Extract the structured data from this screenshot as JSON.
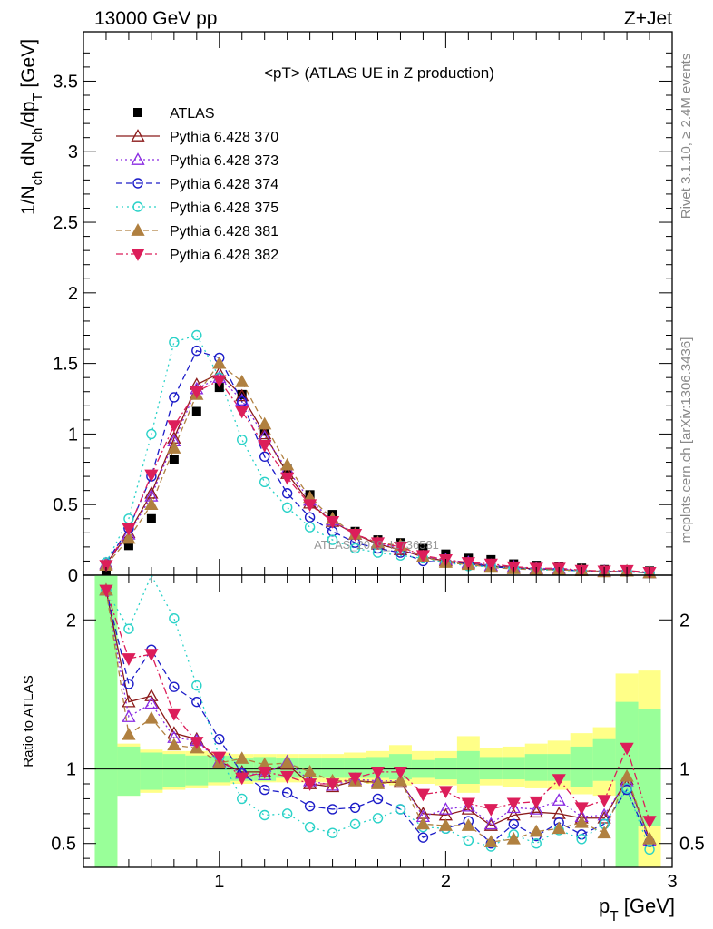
{
  "header": {
    "energy_label": "13000 GeV pp",
    "process_label": "Z+Jet",
    "plot_title": "<pT> (ATLAS UE in Z production)",
    "rivet_label": "Rivet 3.1.10, ≥ 2.4M events",
    "mcplots_label": "mcplots.cern.ch [arXiv:1306.3436]",
    "watermark": "ATLAS_2019_I1736531"
  },
  "axes": {
    "ylabel_main": "1/N_ch dN_ch/dp_T [GeV]",
    "ylabel_ratio": "Ratio to ATLAS",
    "xlabel": "p_T [GeV]"
  },
  "colors": {
    "ATLAS": "#000000",
    "370": "#8b1a1a",
    "373": "#8a2be2",
    "374": "#1c1cc8",
    "375": "#2ad2c8",
    "381": "#b08040",
    "382": "#dc1e5a",
    "band_inner": "#99ff99",
    "band_outer": "#ffff88"
  },
  "chart_data": [
    {
      "type": "scatter",
      "title": "<pT> (ATLAS UE in Z production)",
      "xlabel": "p_T [GeV]",
      "ylabel": "1/N_ch dN_ch/dp_T [GeV]",
      "xlim": [
        0.4,
        3.0
      ],
      "ylim": [
        0,
        3.85
      ],
      "x_ticks": [
        1,
        2,
        3
      ],
      "y_ticks": [
        0,
        0.5,
        1,
        1.5,
        2,
        2.5,
        3,
        3.5
      ],
      "legend_position": "top-left",
      "x": [
        0.5,
        0.6,
        0.7,
        0.8,
        0.9,
        1.0,
        1.1,
        1.2,
        1.3,
        1.4,
        1.5,
        1.6,
        1.7,
        1.8,
        1.9,
        2.0,
        2.1,
        2.2,
        2.3,
        2.4,
        2.5,
        2.6,
        2.7,
        2.8,
        2.9
      ],
      "series": [
        {
          "name": "ATLAS",
          "key": "ATLAS",
          "marker": "square",
          "values": [
            0.03,
            0.21,
            0.4,
            0.82,
            1.16,
            1.33,
            1.28,
            1.02,
            0.75,
            0.57,
            0.43,
            0.31,
            0.25,
            0.23,
            0.19,
            0.15,
            0.12,
            0.11,
            0.08,
            0.07,
            0.06,
            0.05,
            0.04,
            0.03,
            0.03
          ]
        },
        {
          "name": "Pythia 6.428 370",
          "key": "370",
          "marker": "triangle-open",
          "dash": "",
          "values": [
            0.08,
            0.3,
            0.58,
            0.97,
            1.35,
            1.43,
            1.27,
            1.0,
            0.72,
            0.51,
            0.38,
            0.29,
            0.22,
            0.18,
            0.13,
            0.1,
            0.085,
            0.065,
            0.055,
            0.045,
            0.04,
            0.033,
            0.027,
            0.028,
            0.016
          ]
        },
        {
          "name": "Pythia 6.428 373",
          "key": "373",
          "marker": "triangle-open",
          "dash": "2,3",
          "values": [
            0.08,
            0.29,
            0.56,
            0.95,
            1.32,
            1.4,
            1.24,
            0.98,
            0.75,
            0.53,
            0.39,
            0.29,
            0.23,
            0.19,
            0.13,
            0.11,
            0.09,
            0.07,
            0.06,
            0.048,
            0.047,
            0.034,
            0.027,
            0.028,
            0.016
          ]
        },
        {
          "name": "Pythia 6.428 374",
          "key": "374",
          "marker": "circle-open",
          "dash": "7,4",
          "values": [
            0.09,
            0.33,
            0.7,
            1.26,
            1.59,
            1.54,
            1.23,
            0.84,
            0.58,
            0.41,
            0.31,
            0.23,
            0.19,
            0.16,
            0.1,
            0.09,
            0.08,
            0.06,
            0.05,
            0.04,
            0.04,
            0.03,
            0.025,
            0.025,
            0.015
          ]
        },
        {
          "name": "Pythia 6.428 375",
          "key": "375",
          "marker": "circle-open",
          "dash": "2,4",
          "values": [
            0.09,
            0.4,
            1.0,
            1.65,
            1.7,
            1.4,
            0.96,
            0.66,
            0.48,
            0.34,
            0.25,
            0.19,
            0.16,
            0.14,
            0.12,
            0.09,
            0.065,
            0.06,
            0.05,
            0.04,
            0.035,
            0.03,
            0.025,
            0.025,
            0.013
          ]
        },
        {
          "name": "Pythia 6.428 381",
          "key": "381",
          "marker": "triangle-filled",
          "dash": "6,4",
          "values": [
            0.07,
            0.26,
            0.5,
            0.9,
            1.28,
            1.5,
            1.37,
            1.07,
            0.78,
            0.55,
            0.4,
            0.29,
            0.23,
            0.21,
            0.13,
            0.09,
            0.075,
            0.055,
            0.045,
            0.04,
            0.038,
            0.032,
            0.023,
            0.028,
            0.016
          ]
        },
        {
          "name": "Pythia 6.428 382",
          "key": "382",
          "marker": "triangledown-filled",
          "dash": "8,3,2,3",
          "values": [
            0.07,
            0.33,
            0.71,
            1.06,
            1.3,
            1.38,
            1.16,
            0.92,
            0.69,
            0.5,
            0.38,
            0.29,
            0.23,
            0.2,
            0.14,
            0.11,
            0.09,
            0.08,
            0.06,
            0.05,
            0.05,
            0.035,
            0.03,
            0.034,
            0.02
          ]
        }
      ]
    },
    {
      "type": "line",
      "ylabel": "Ratio to ATLAS",
      "xlabel": "p_T [GeV]",
      "xlim": [
        0.4,
        3.0
      ],
      "ylim": [
        0.34,
        2.3
      ],
      "y_ticks": [
        0.5,
        1,
        2
      ],
      "reference_line": 1,
      "x": [
        0.5,
        0.6,
        0.7,
        0.8,
        0.9,
        1.0,
        1.1,
        1.2,
        1.3,
        1.4,
        1.5,
        1.6,
        1.7,
        1.8,
        1.9,
        2.0,
        2.1,
        2.2,
        2.3,
        2.4,
        2.5,
        2.6,
        2.7,
        2.8,
        2.9
      ],
      "bands": {
        "x_edges": [
          0.45,
          0.55,
          0.65,
          0.75,
          0.85,
          0.95,
          1.05,
          1.15,
          1.25,
          1.35,
          1.45,
          1.55,
          1.65,
          1.75,
          1.85,
          1.95,
          2.05,
          2.15,
          2.25,
          2.35,
          2.45,
          2.55,
          2.65,
          2.75,
          2.85,
          2.95
        ],
        "inner": [
          [
            0.34,
            2.3
          ],
          [
            0.82,
            1.15
          ],
          [
            0.86,
            1.11
          ],
          [
            0.88,
            1.1
          ],
          [
            0.89,
            1.09
          ],
          [
            0.91,
            1.09
          ],
          [
            0.92,
            1.07
          ],
          [
            0.92,
            1.08
          ],
          [
            0.94,
            1.07
          ],
          [
            0.94,
            1.07
          ],
          [
            0.94,
            1.07
          ],
          [
            0.94,
            1.07
          ],
          [
            0.94,
            1.08
          ],
          [
            0.93,
            1.1
          ],
          [
            0.94,
            1.06
          ],
          [
            0.93,
            1.07
          ],
          [
            0.9,
            1.12
          ],
          [
            0.93,
            1.08
          ],
          [
            0.93,
            1.08
          ],
          [
            0.92,
            1.1
          ],
          [
            0.92,
            1.1
          ],
          [
            0.88,
            1.15
          ],
          [
            0.92,
            1.2
          ],
          [
            0.34,
            1.45
          ],
          [
            0.62,
            1.4
          ]
        ],
        "outer": [
          [
            0.34,
            2.3
          ],
          [
            0.82,
            1.17
          ],
          [
            0.84,
            1.13
          ],
          [
            0.86,
            1.12
          ],
          [
            0.87,
            1.12
          ],
          [
            0.89,
            1.11
          ],
          [
            0.9,
            1.1
          ],
          [
            0.91,
            1.1
          ],
          [
            0.91,
            1.1
          ],
          [
            0.91,
            1.1
          ],
          [
            0.91,
            1.1
          ],
          [
            0.91,
            1.11
          ],
          [
            0.9,
            1.12
          ],
          [
            0.89,
            1.16
          ],
          [
            0.9,
            1.12
          ],
          [
            0.89,
            1.12
          ],
          [
            0.84,
            1.22
          ],
          [
            0.89,
            1.14
          ],
          [
            0.88,
            1.15
          ],
          [
            0.87,
            1.17
          ],
          [
            0.86,
            1.19
          ],
          [
            0.83,
            1.24
          ],
          [
            0.82,
            1.28
          ],
          [
            0.34,
            1.64
          ],
          [
            0.34,
            1.66
          ]
        ]
      },
      "series": [
        {
          "name": "Pythia 6.428 370",
          "key": "370",
          "values": [
            2.2,
            1.45,
            1.49,
            1.24,
            1.2,
            1.05,
            0.98,
            0.98,
            1.03,
            0.9,
            0.88,
            0.92,
            0.91,
            0.91,
            0.7,
            0.69,
            0.73,
            0.62,
            0.69,
            0.71,
            0.7,
            0.67,
            0.67,
            0.93,
            0.53
          ]
        },
        {
          "name": "Pythia 6.428 373",
          "key": "373",
          "values": [
            2.2,
            1.35,
            1.44,
            1.21,
            1.19,
            1.05,
            0.97,
            0.96,
            1.05,
            0.92,
            0.89,
            0.93,
            0.92,
            0.92,
            0.68,
            0.73,
            0.75,
            0.63,
            0.74,
            0.73,
            0.79,
            0.68,
            0.69,
            0.92,
            0.52
          ]
        },
        {
          "name": "Pythia 6.428 374",
          "key": "374",
          "values": [
            2.2,
            1.57,
            1.8,
            1.55,
            1.45,
            1.2,
            0.97,
            0.86,
            0.84,
            0.75,
            0.73,
            0.74,
            0.8,
            0.73,
            0.54,
            0.6,
            0.65,
            0.5,
            0.63,
            0.55,
            0.64,
            0.56,
            0.63,
            0.86,
            0.51
          ]
        },
        {
          "name": "Pythia 6.428 375",
          "key": "375",
          "values": [
            2.2,
            1.94,
            2.34,
            2.01,
            1.56,
            1.08,
            0.8,
            0.69,
            0.7,
            0.61,
            0.57,
            0.63,
            0.67,
            0.73,
            0.61,
            0.6,
            0.52,
            0.48,
            0.56,
            0.5,
            0.59,
            0.53,
            0.63,
            0.87,
            0.46
          ]
        },
        {
          "name": "Pythia 6.428 381",
          "key": "381",
          "values": [
            2.2,
            1.23,
            1.34,
            1.16,
            1.14,
            1.04,
            1.07,
            1.03,
            1.04,
            0.98,
            0.92,
            0.92,
            0.9,
            0.92,
            0.63,
            0.62,
            0.62,
            0.51,
            0.53,
            0.58,
            0.6,
            0.64,
            0.57,
            0.95,
            0.53
          ]
        },
        {
          "name": "Pythia 6.428 382",
          "key": "382",
          "values": [
            2.2,
            1.74,
            1.77,
            1.37,
            1.18,
            1.08,
            0.94,
            0.98,
            0.95,
            0.9,
            0.9,
            0.94,
            0.98,
            0.98,
            0.83,
            0.85,
            0.77,
            0.73,
            0.77,
            0.78,
            0.93,
            0.74,
            0.79,
            1.14,
            0.65
          ]
        }
      ]
    }
  ]
}
